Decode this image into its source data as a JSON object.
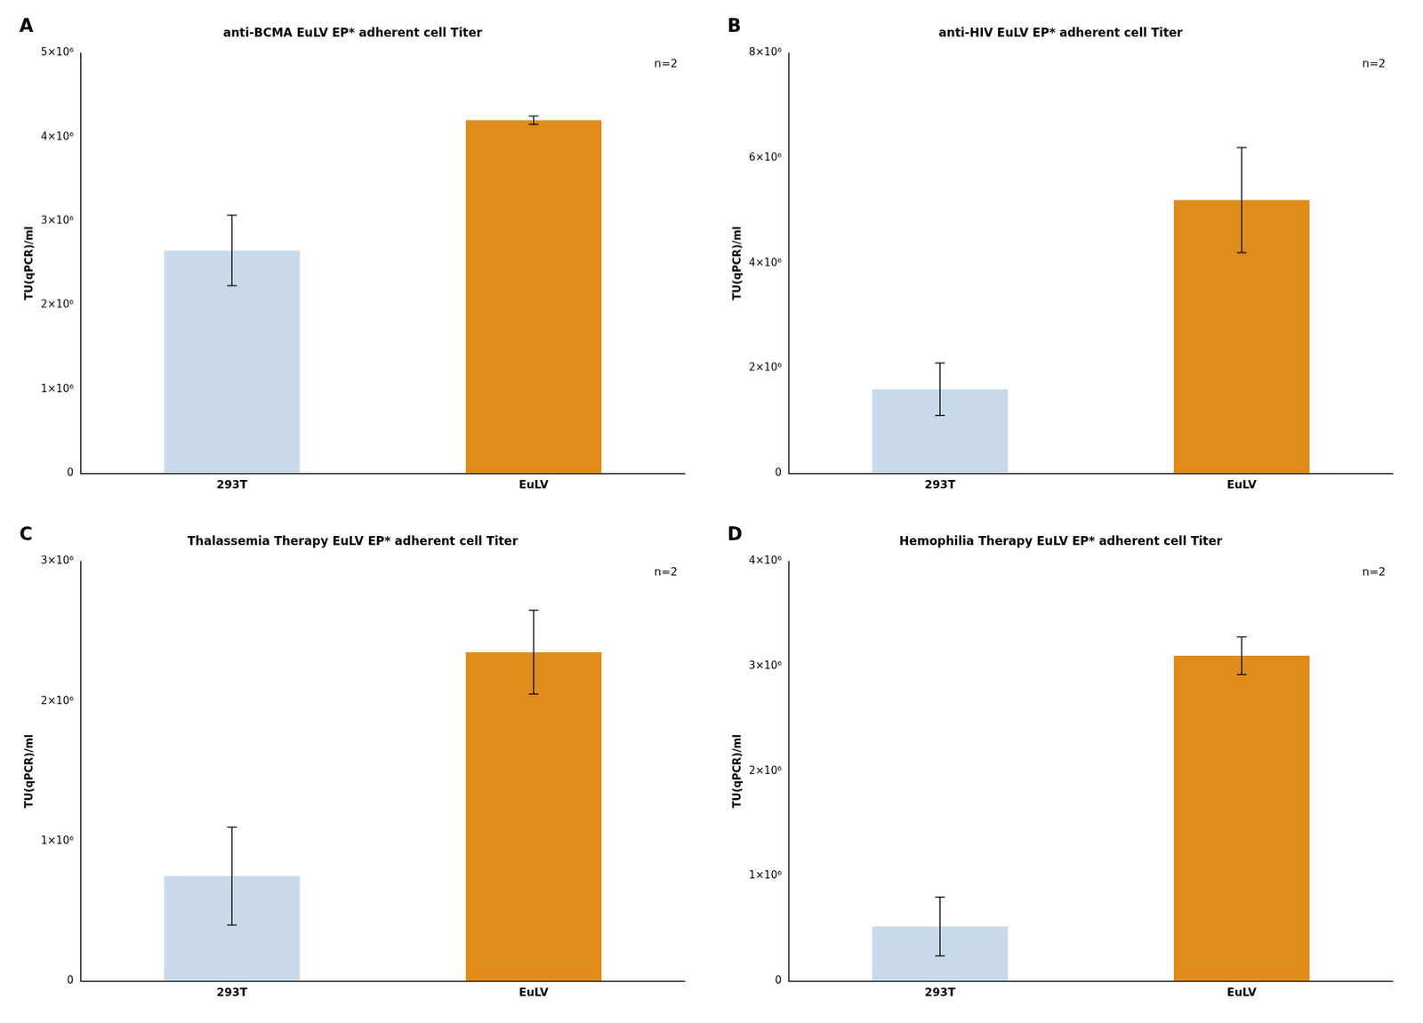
{
  "chart_data": [
    {
      "type": "bar",
      "title": "anti-BCMA EuLV EP* adherent cell Titer",
      "panel_label": "A",
      "annotation": "n=2",
      "ylabel": "TU(qPCR)/ml",
      "categories": [
        "293T",
        "EuLV"
      ],
      "values": [
        2650000,
        4200000
      ],
      "errors": [
        420000,
        50000
      ],
      "colors": [
        "#c8daea",
        "#e08c1a"
      ],
      "ylim": [
        0,
        5000000
      ],
      "yticks": [
        0,
        {
          "value": 1000000,
          "label": "1×10⁶"
        },
        {
          "value": 2000000,
          "label": "2×10⁶"
        },
        {
          "value": 3000000,
          "label": "3×10⁶"
        },
        {
          "value": 4000000,
          "label": "4×10⁶"
        },
        {
          "value": 5000000,
          "label": "5×10⁶"
        }
      ],
      "grid": false
    },
    {
      "type": "bar",
      "title": "anti-HIV EuLV EP* adherent cell Titer",
      "panel_label": "B",
      "annotation": "n=2",
      "ylabel": "TU(qPCR)/ml",
      "categories": [
        "293T",
        "EuLV"
      ],
      "values": [
        1600000,
        5200000
      ],
      "errors": [
        500000,
        1000000
      ],
      "colors": [
        "#c8daea",
        "#e08c1a"
      ],
      "ylim": [
        0,
        8000000
      ],
      "yticks": [
        0,
        {
          "value": 2000000,
          "label": "2×10⁶"
        },
        {
          "value": 4000000,
          "label": "4×10⁶"
        },
        {
          "value": 6000000,
          "label": "6×10⁶"
        },
        {
          "value": 8000000,
          "label": "8×10⁶"
        }
      ],
      "grid": false
    },
    {
      "type": "bar",
      "title": "Thalassemia Therapy EuLV EP* adherent cell Titer",
      "panel_label": "C",
      "annotation": "n=2",
      "ylabel": "TU(qPCR)/ml",
      "categories": [
        "293T",
        "EuLV"
      ],
      "values": [
        750000,
        2350000
      ],
      "errors": [
        350000,
        300000
      ],
      "colors": [
        "#c8daea",
        "#e08c1a"
      ],
      "ylim": [
        0,
        3000000
      ],
      "yticks": [
        0,
        {
          "value": 1000000,
          "label": "1×10⁶"
        },
        {
          "value": 2000000,
          "label": "2×10⁶"
        },
        {
          "value": 3000000,
          "label": "3×10⁶"
        }
      ],
      "grid": false
    },
    {
      "type": "bar",
      "title": "Hemophilia Therapy EuLV EP* adherent cell Titer",
      "panel_label": "D",
      "annotation": "n=2",
      "ylabel": "TU(qPCR)/ml",
      "categories": [
        "293T",
        "EuLV"
      ],
      "values": [
        520000,
        3100000
      ],
      "errors": [
        280000,
        180000
      ],
      "colors": [
        "#c8daea",
        "#e08c1a"
      ],
      "ylim": [
        0,
        4000000
      ],
      "yticks": [
        0,
        {
          "value": 1000000,
          "label": "1×10⁶"
        },
        {
          "value": 2000000,
          "label": "2×10⁶"
        },
        {
          "value": 3000000,
          "label": "3×10⁶"
        },
        {
          "value": 4000000,
          "label": "4×10⁶"
        }
      ],
      "grid": false
    }
  ]
}
